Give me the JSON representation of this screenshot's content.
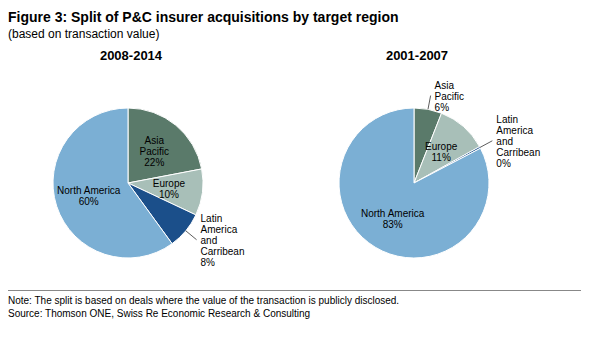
{
  "title": "Figure 3: Split of P&C insurer acquisitions by target region",
  "subtitle": "(based on transaction value)",
  "annotations": [
    "Note: The split is based on deals where the value of the transaction is publicly disclosed.",
    "Source: Thomson ONE, Swiss Re Economic Research & Consulting"
  ],
  "chart_data": [
    {
      "type": "pie",
      "title": "2008-2014",
      "categories": [
        "Asia\nPacific",
        "Europe",
        "Latin\nAmerica\nand\nCarribean",
        "North America"
      ],
      "values": [
        22,
        10,
        8,
        60
      ],
      "value_labels": [
        "22%",
        "10%",
        "8%",
        "60%"
      ],
      "colors": [
        "#5A7A6A",
        "#A8BFB8",
        "#1B4F8A",
        "#7BAFD4"
      ],
      "data_labels": true
    },
    {
      "type": "pie",
      "title": "2001-2007",
      "categories": [
        "Asia\nPacific",
        "Europe",
        "Latin\nAmerica\nand\nCarribean",
        "North America"
      ],
      "values": [
        6,
        11,
        0.4,
        83
      ],
      "value_labels": [
        "6%",
        "11%",
        "0%",
        "83%"
      ],
      "colors": [
        "#5A7A6A",
        "#A8BFB8",
        "#1B4F8A",
        "#7BAFD4"
      ],
      "data_labels": true
    }
  ]
}
